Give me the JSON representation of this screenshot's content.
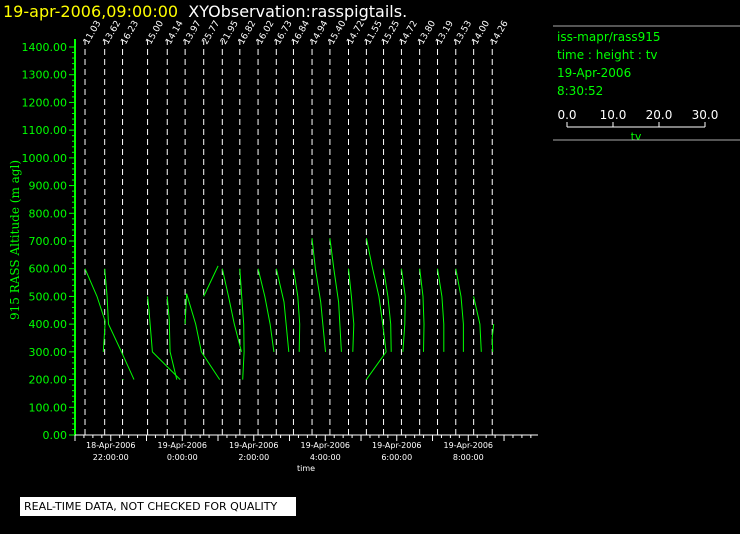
{
  "header": {
    "timestamp": "19-apr-2006,09:00:00",
    "title": "XYObservation:rasspigtails."
  },
  "legend": {
    "station": "iss-mapr/rass915",
    "variables": "time : height : tv",
    "date": "19-Apr-2006",
    "time": "8:30:52",
    "scale_ticks": [
      "0.0",
      "10.0",
      "20.0",
      "30.0"
    ],
    "scale_label": "tv"
  },
  "footer": {
    "quality_note": "REAL-TIME DATA, NOT CHECKED FOR QUALITY"
  },
  "chart_data": {
    "type": "line",
    "ylabel": "915 RASS Altitude (m agl)",
    "xlabel": "time",
    "ylim": [
      0,
      1400
    ],
    "yticks": [
      "0.00",
      "100.00",
      "200.00",
      "300.00",
      "400.00",
      "500.00",
      "600.00",
      "700.00",
      "800.00",
      "900.00",
      "1000.00",
      "1100.00",
      "1200.00",
      "1300.00",
      "1400.00"
    ],
    "xticks": [
      {
        "date": "18-Apr-2006",
        "time": "22:00:00",
        "hour": -2
      },
      {
        "date": "19-Apr-2006",
        "time": "0:00:00",
        "hour": 0
      },
      {
        "date": "19-Apr-2006",
        "time": "2:00:00",
        "hour": 2
      },
      {
        "date": "19-Apr-2006",
        "time": "4:00:00",
        "hour": 4
      },
      {
        "date": "19-Apr-2006",
        "time": "6:00:00",
        "hour": 6
      },
      {
        "date": "19-Apr-2006",
        "time": "8:00:00",
        "hour": 8
      }
    ],
    "xlim_hours": [
      -3.0,
      9.95
    ],
    "profiles": [
      {
        "label": "11.03",
        "hour": -2.72,
        "tv_min": 11.03,
        "points": [
          [
            0.0,
            600
          ],
          [
            2.5,
            500
          ],
          [
            4.2,
            410
          ],
          [
            3.8,
            300
          ]
        ]
      },
      {
        "label": "13.62",
        "hour": -2.17,
        "tv_min": 13.62,
        "points": [
          [
            0.0,
            600
          ],
          [
            0.5,
            500
          ],
          [
            0.8,
            400
          ],
          [
            3.5,
            300
          ],
          [
            6.1,
            200
          ]
        ]
      },
      {
        "label": "16.23",
        "hour": -1.67,
        "tv_min": 16.23,
        "points": [
          [
            0.0,
            200
          ]
        ]
      },
      {
        "label": "15.00",
        "hour": -0.97,
        "tv_min": 15.0,
        "points": [
          [
            0.0,
            500
          ],
          [
            0.3,
            450
          ],
          [
            1.0,
            300
          ],
          [
            6.8,
            200
          ]
        ]
      },
      {
        "label": "14.14",
        "hour": -0.42,
        "tv_min": 14.14,
        "points": [
          [
            0.0,
            500
          ],
          [
            0.4,
            420
          ],
          [
            0.6,
            300
          ],
          [
            2.0,
            200
          ]
        ]
      },
      {
        "label": "13.97",
        "hour": 0.08,
        "tv_min": 13.97,
        "points": [
          [
            0.0,
            400
          ],
          [
            0.3,
            510
          ],
          [
            2.2,
            400
          ],
          [
            3.4,
            300
          ],
          [
            7.2,
            200
          ]
        ]
      },
      {
        "label": "25.77",
        "hour": 0.6,
        "tv_min": 25.77,
        "points": [
          [
            0.0,
            500
          ],
          [
            3.0,
            610
          ]
        ]
      },
      {
        "label": "21.95",
        "hour": 1.12,
        "tv_min": 21.95,
        "points": [
          [
            0.0,
            600
          ],
          [
            1.3,
            500
          ],
          [
            2.5,
            400
          ],
          [
            4.0,
            300
          ]
        ]
      },
      {
        "label": "16.82",
        "hour": 1.61,
        "tv_min": 16.82,
        "points": [
          [
            0.0,
            600
          ],
          [
            0.4,
            500
          ],
          [
            0.8,
            400
          ],
          [
            0.9,
            300
          ],
          [
            0.6,
            200
          ]
        ]
      },
      {
        "label": "16.02",
        "hour": 2.12,
        "tv_min": 16.02,
        "points": [
          [
            0.0,
            600
          ],
          [
            1.4,
            500
          ],
          [
            2.5,
            400
          ],
          [
            3.3,
            300
          ]
        ]
      },
      {
        "label": "16.73",
        "hour": 2.63,
        "tv_min": 16.73,
        "points": [
          [
            0.0,
            600
          ],
          [
            1.6,
            480
          ],
          [
            2.6,
            300
          ]
        ]
      },
      {
        "label": "16.84",
        "hour": 3.11,
        "tv_min": 16.84,
        "points": [
          [
            0.0,
            600
          ],
          [
            0.9,
            500
          ],
          [
            1.3,
            400
          ],
          [
            1.2,
            300
          ]
        ]
      },
      {
        "label": "14.94",
        "hour": 3.63,
        "tv_min": 14.94,
        "points": [
          [
            0.0,
            710
          ],
          [
            0.7,
            600
          ],
          [
            1.8,
            480
          ],
          [
            2.8,
            300
          ]
        ]
      },
      {
        "label": "15.40",
        "hour": 4.13,
        "tv_min": 15.4,
        "points": [
          [
            0.0,
            710
          ],
          [
            0.8,
            600
          ],
          [
            1.8,
            480
          ],
          [
            2.4,
            300
          ]
        ]
      },
      {
        "label": "14.72",
        "hour": 4.65,
        "tv_min": 14.72,
        "points": [
          [
            0.0,
            600
          ],
          [
            0.6,
            500
          ],
          [
            1.1,
            400
          ],
          [
            0.9,
            300
          ]
        ]
      },
      {
        "label": "11.55",
        "hour": 5.15,
        "tv_min": 11.55,
        "points": [
          [
            0.0,
            710
          ],
          [
            1.3,
            600
          ],
          [
            2.6,
            500
          ],
          [
            3.4,
            400
          ],
          [
            4.1,
            300
          ],
          [
            0.0,
            200
          ]
        ]
      },
      {
        "label": "15.25",
        "hour": 5.63,
        "tv_min": 15.25,
        "points": [
          [
            0.0,
            600
          ],
          [
            0.9,
            500
          ],
          [
            1.5,
            400
          ],
          [
            1.6,
            300
          ]
        ]
      },
      {
        "label": "14.72",
        "hour": 6.13,
        "tv_min": 14.72,
        "points": [
          [
            0.0,
            600
          ],
          [
            0.8,
            500
          ],
          [
            0.7,
            400
          ],
          [
            0.3,
            300
          ]
        ]
      },
      {
        "label": "13.80",
        "hour": 6.64,
        "tv_min": 13.8,
        "points": [
          [
            0.0,
            600
          ],
          [
            0.7,
            500
          ],
          [
            0.9,
            400
          ],
          [
            0.8,
            300
          ]
        ]
      },
      {
        "label": "13.19",
        "hour": 7.14,
        "tv_min": 13.19,
        "points": [
          [
            0.0,
            600
          ],
          [
            0.9,
            500
          ],
          [
            1.3,
            400
          ],
          [
            1.3,
            300
          ]
        ]
      },
      {
        "label": "13.53",
        "hour": 7.65,
        "tv_min": 13.53,
        "points": [
          [
            0.0,
            600
          ],
          [
            1.1,
            500
          ],
          [
            1.6,
            400
          ],
          [
            1.6,
            300
          ]
        ]
      },
      {
        "label": "14.00",
        "hour": 8.15,
        "tv_min": 14.0,
        "points": [
          [
            0.0,
            500
          ],
          [
            1.3,
            400
          ],
          [
            1.6,
            300
          ]
        ]
      },
      {
        "label": "14.26",
        "hour": 8.67,
        "tv_min": 14.26,
        "points": [
          [
            0.3,
            400
          ],
          [
            0.0,
            350
          ],
          [
            0.1,
            300
          ]
        ]
      }
    ]
  }
}
